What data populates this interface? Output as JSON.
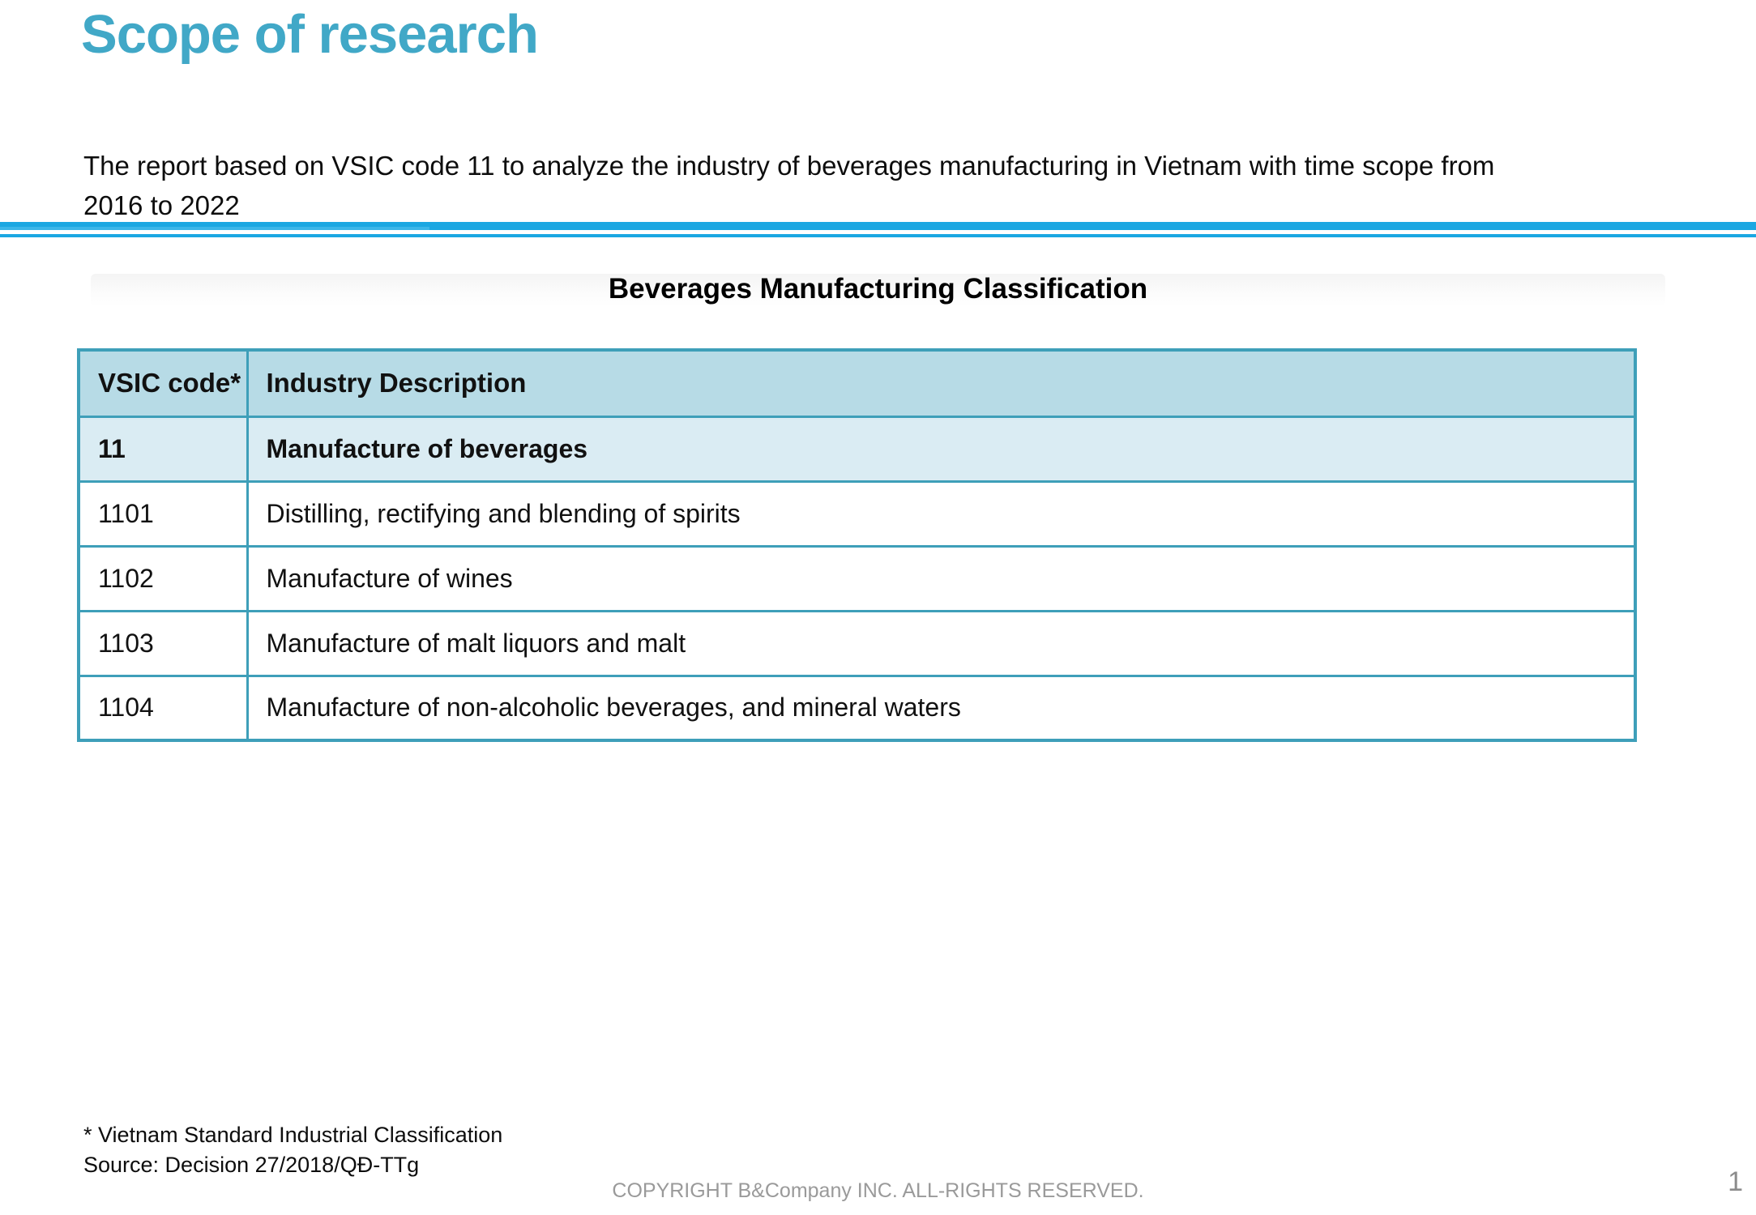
{
  "header": {
    "title": "Scope of research"
  },
  "intro": {
    "lines": [
      "The report based on VSIC code 11 to analyze the industry of beverages manufacturing in Vietnam with time scope from",
      "2016 to 2022"
    ]
  },
  "section": {
    "title": "Beverages Manufacturing Classification"
  },
  "table": {
    "columns": [
      "VSIC code*",
      "Industry Description"
    ],
    "rows": [
      {
        "code": "11",
        "description": "Manufacture of beverages"
      },
      {
        "code": "1101",
        "description": "Distilling, rectifying and blending of spirits"
      },
      {
        "code": "1102",
        "description": "Manufacture of wines"
      },
      {
        "code": "1103",
        "description": "Manufacture of malt liquors and malt"
      },
      {
        "code": "1104",
        "description": "Manufacture of non-alcoholic beverages, and mineral waters"
      }
    ]
  },
  "footnotes": {
    "lines": [
      "* Vietnam Standard Industrial Classification",
      "Source: Decision 27/2018/QĐ-TTg"
    ]
  },
  "footer": {
    "copyright": "COPYRIGHT B&Company INC. ALL-RIGHTS RESERVED.",
    "page_number": "1"
  },
  "colors": {
    "accent_teal": "#41A8C7",
    "divider_blue": "#1BA7E2",
    "divider_blue_light": "#55C2EE",
    "table_border": "#3E9FB9",
    "header_bg": "#B7DBE6",
    "highlight_bg": "#DAECF3",
    "footer_gray": "#9A9A9A"
  }
}
